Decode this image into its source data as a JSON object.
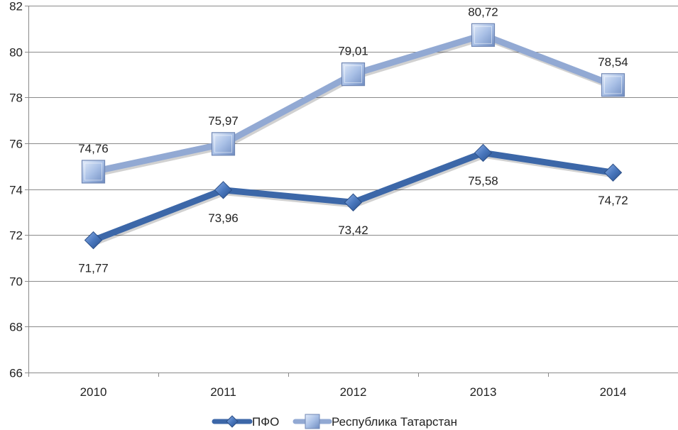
{
  "chart_data": {
    "type": "line",
    "title": "",
    "xlabel": "",
    "ylabel": "",
    "categories": [
      "2010",
      "2011",
      "2012",
      "2013",
      "2014"
    ],
    "ylim": [
      66,
      82
    ],
    "yticks": [
      66,
      68,
      70,
      72,
      74,
      76,
      78,
      80,
      82
    ],
    "grid": true,
    "legend_position": "bottom",
    "series": [
      {
        "name": "ПФО",
        "values": [
          71.77,
          73.96,
          73.42,
          75.58,
          74.72
        ],
        "labels": [
          "71,77",
          "73,96",
          "73,42",
          "75,58",
          "74,72"
        ],
        "label_position": "below",
        "marker": "diamond",
        "color": "#3C67A8",
        "marker_color": "#4A78BE"
      },
      {
        "name": "Республика Татарстан",
        "values": [
          74.76,
          75.97,
          79.01,
          80.72,
          78.54
        ],
        "labels": [
          "74,76",
          "75,97",
          "79,01",
          "80,72",
          "78,54"
        ],
        "label_position": "above",
        "marker": "square",
        "color": "#92A9D3",
        "marker_color": "#A5BDE4"
      }
    ]
  }
}
